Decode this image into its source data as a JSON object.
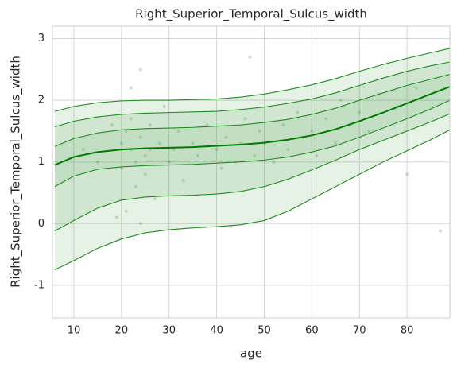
{
  "chart_data": {
    "type": "line",
    "title": "Right_Superior_Temporal_Sulcus_width",
    "xlabel": "age",
    "ylabel": "Right_Superior_Temporal_Sulcus_width",
    "x": [
      6,
      10,
      15,
      20,
      25,
      30,
      35,
      40,
      45,
      50,
      55,
      60,
      65,
      70,
      75,
      80,
      85,
      89
    ],
    "series": [
      {
        "color": "#228b22",
        "values": [
          1.82,
          1.9,
          1.96,
          1.99,
          2.0,
          2.0,
          2.01,
          2.02,
          2.05,
          2.1,
          2.17,
          2.25,
          2.35,
          2.47,
          2.58,
          2.68,
          2.77,
          2.84
        ]
      },
      {
        "color": "#228b22",
        "values": [
          1.57,
          1.66,
          1.73,
          1.77,
          1.79,
          1.8,
          1.81,
          1.82,
          1.85,
          1.89,
          1.95,
          2.02,
          2.12,
          2.24,
          2.36,
          2.47,
          2.56,
          2.62
        ]
      },
      {
        "color": "#228b22",
        "values": [
          1.25,
          1.38,
          1.47,
          1.52,
          1.54,
          1.55,
          1.56,
          1.58,
          1.6,
          1.64,
          1.69,
          1.77,
          1.87,
          2.0,
          2.12,
          2.24,
          2.34,
          2.42
        ]
      },
      {
        "color": "#007a00",
        "values": [
          0.95,
          1.08,
          1.16,
          1.2,
          1.22,
          1.23,
          1.24,
          1.26,
          1.28,
          1.31,
          1.36,
          1.43,
          1.53,
          1.66,
          1.8,
          1.95,
          2.1,
          2.22
        ]
      },
      {
        "color": "#228b22",
        "values": [
          0.6,
          0.77,
          0.88,
          0.92,
          0.94,
          0.95,
          0.96,
          0.98,
          1.0,
          1.03,
          1.08,
          1.16,
          1.26,
          1.4,
          1.55,
          1.7,
          1.86,
          2.0
        ]
      },
      {
        "color": "#228b22",
        "values": [
          -0.12,
          0.05,
          0.25,
          0.38,
          0.43,
          0.45,
          0.46,
          0.48,
          0.52,
          0.6,
          0.72,
          0.87,
          1.03,
          1.2,
          1.35,
          1.5,
          1.65,
          1.78
        ]
      },
      {
        "color": "#228b22",
        "values": [
          -0.75,
          -0.6,
          -0.4,
          -0.25,
          -0.15,
          -0.1,
          -0.07,
          -0.05,
          -0.02,
          0.05,
          0.2,
          0.4,
          0.6,
          0.8,
          1.0,
          1.18,
          1.36,
          1.52
        ]
      }
    ],
    "scatter": {
      "color": "#2e8b2e",
      "x": [
        20,
        20,
        21,
        21,
        22,
        22,
        23,
        23,
        24,
        24,
        25,
        25,
        26,
        26,
        27,
        28,
        29,
        30,
        31,
        32,
        33,
        35,
        36,
        38,
        40,
        41,
        42,
        43,
        44,
        45,
        46,
        47,
        48,
        49,
        50,
        52,
        54,
        55,
        57,
        58,
        60,
        61,
        63,
        65,
        66,
        68,
        70,
        72,
        74,
        76,
        78,
        80,
        82,
        87,
        15,
        12,
        18,
        19,
        22,
        24
      ],
      "y": [
        1.3,
        0.9,
        1.5,
        0.2,
        1.2,
        1.7,
        1.0,
        0.6,
        1.4,
        2.5,
        1.1,
        0.8,
        1.6,
        1.2,
        0.4,
        1.3,
        1.9,
        1.0,
        1.2,
        1.5,
        0.7,
        1.3,
        1.1,
        1.6,
        1.2,
        0.9,
        1.4,
        -0.05,
        1.0,
        1.3,
        1.7,
        2.7,
        1.1,
        1.5,
        1.3,
        1.0,
        1.6,
        1.2,
        1.8,
        1.4,
        1.5,
        1.1,
        1.7,
        1.3,
        2.0,
        1.6,
        1.8,
        1.5,
        2.1,
        2.6,
        1.9,
        0.8,
        2.2,
        -0.12,
        1.0,
        1.2,
        1.6,
        0.1,
        2.2,
        0.0
      ]
    },
    "xlim": [
      5.5,
      89
    ],
    "ylim": [
      -1.53,
      3.2
    ],
    "xticks": [
      10,
      20,
      30,
      40,
      50,
      60,
      70,
      80
    ],
    "yticks": [
      -1,
      0,
      1,
      2,
      3
    ],
    "grid": true
  }
}
